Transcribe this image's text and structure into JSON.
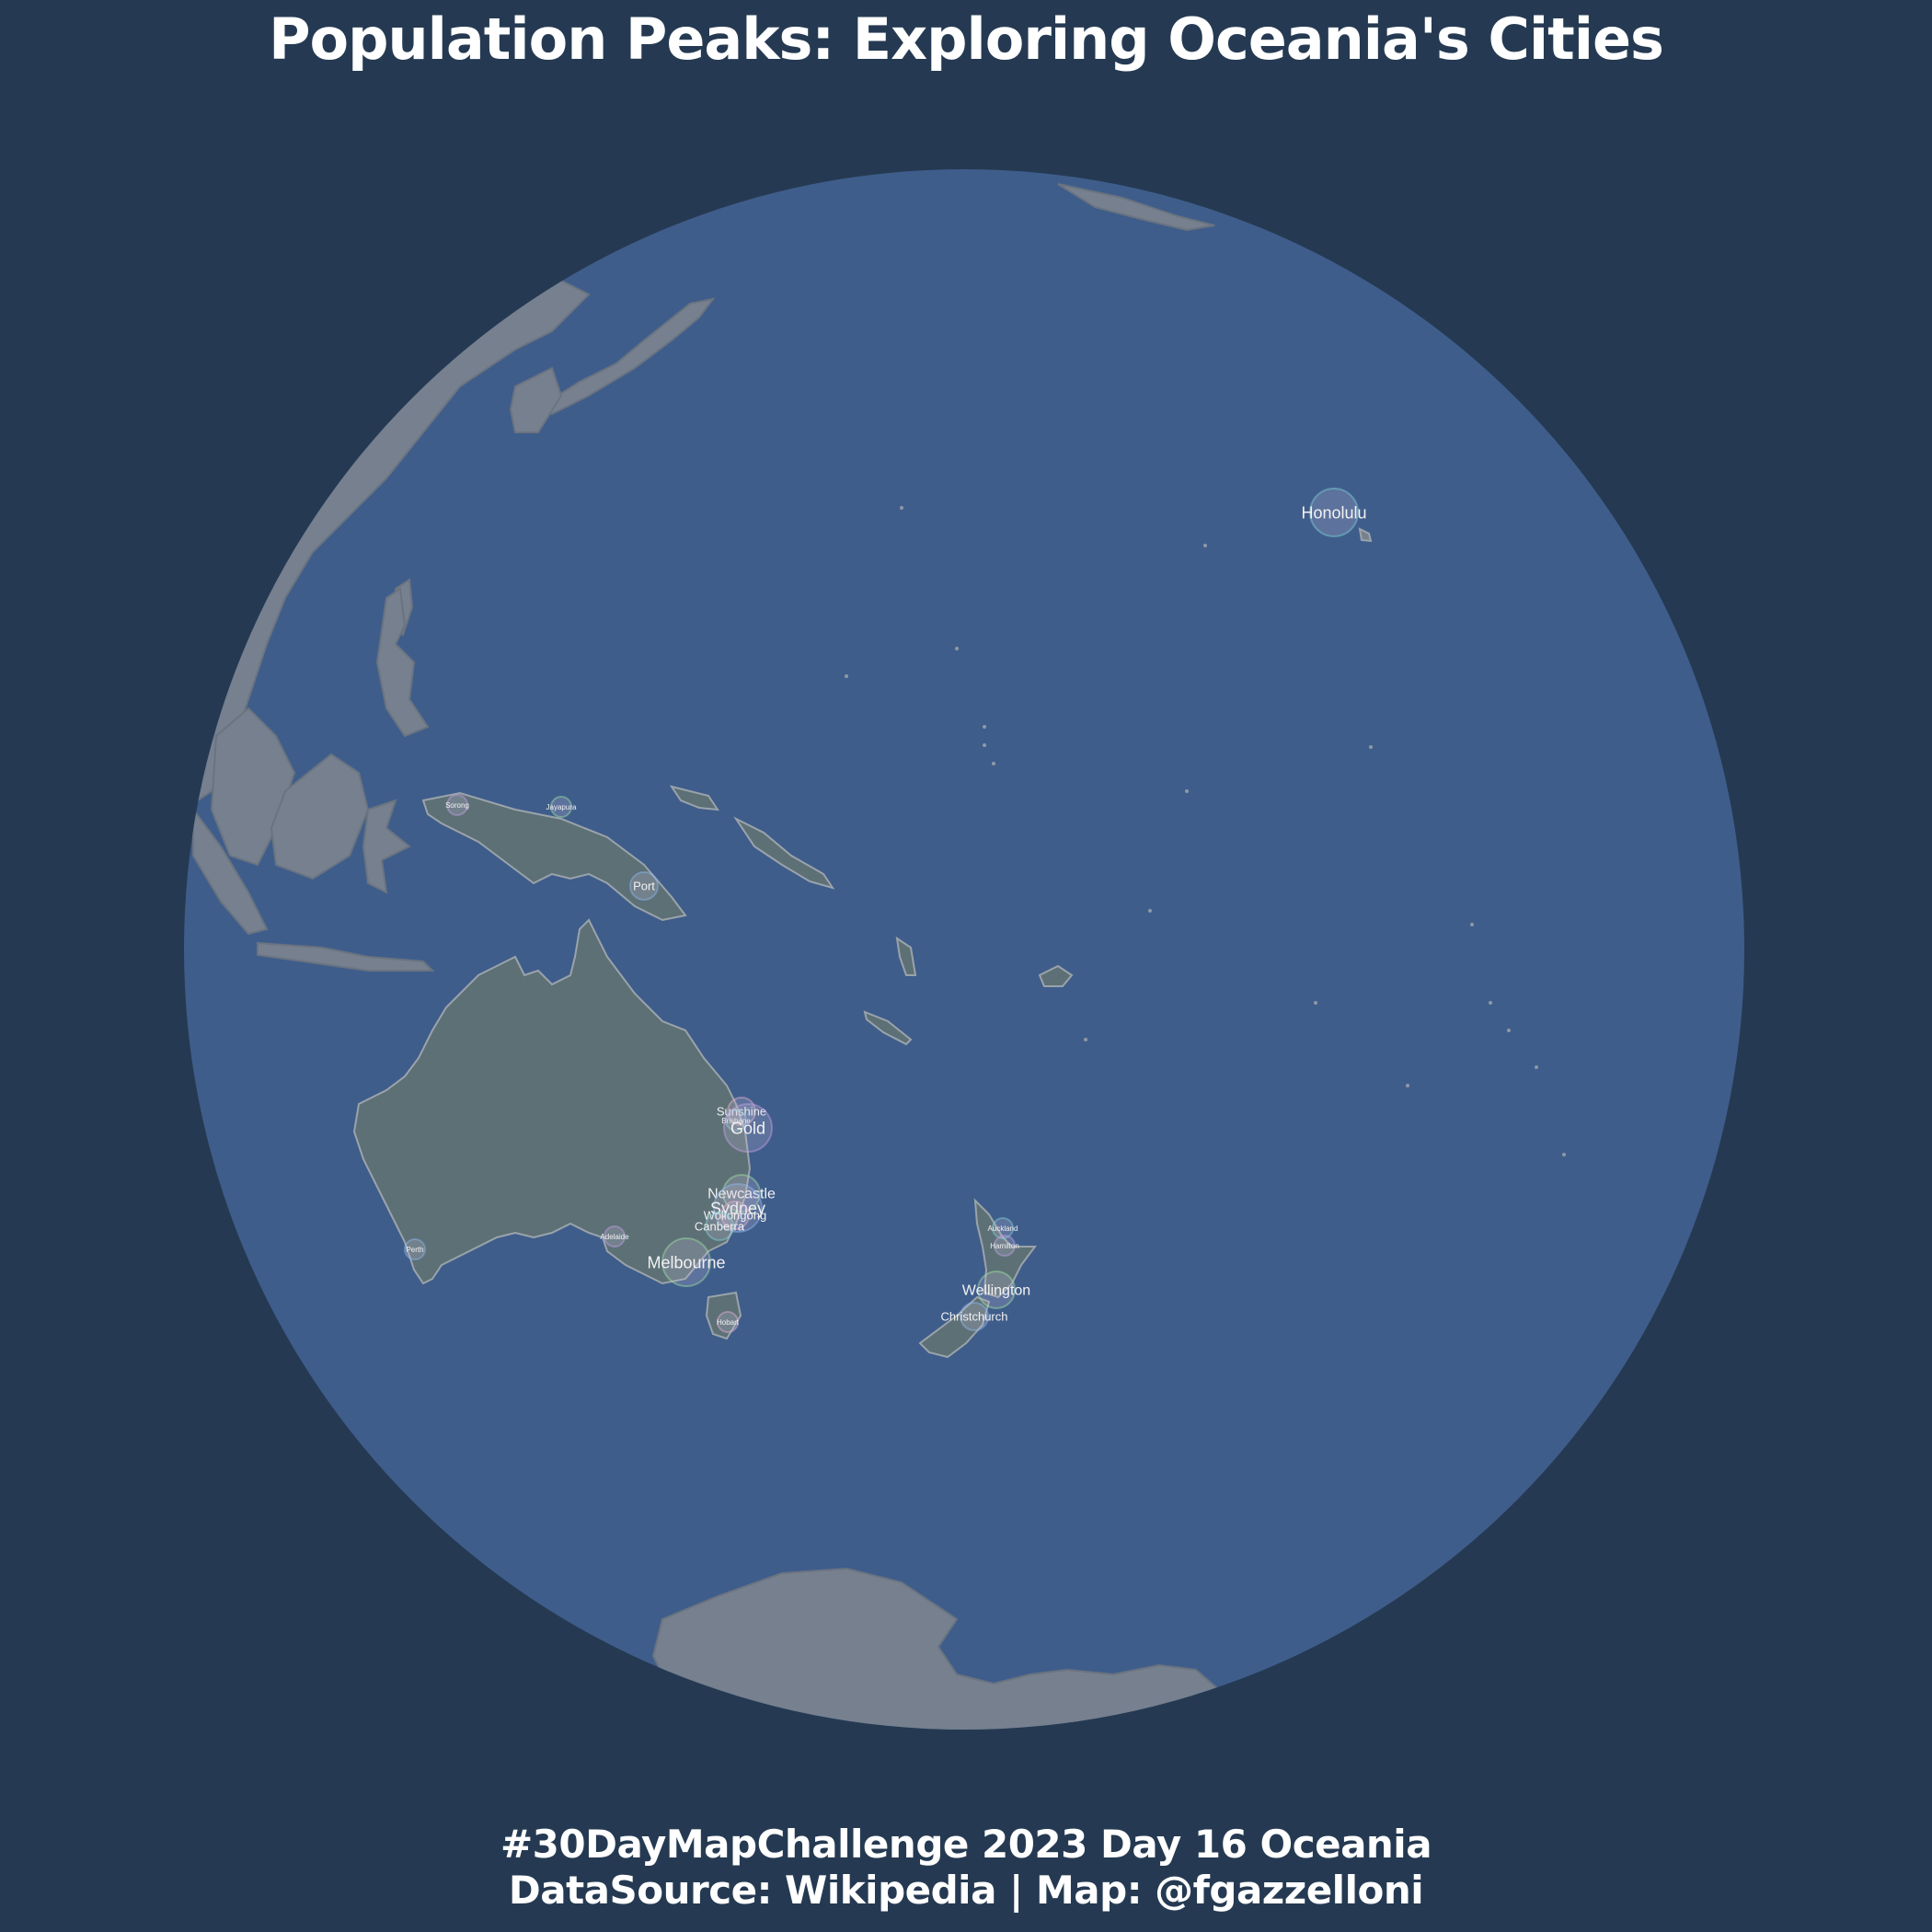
{
  "title": "Population Peaks: Exploring Oceania's Cities",
  "caption": {
    "line1": "#30DayMapChallenge 2023 Day 16 Oceania",
    "line2": "DataSource: Wikipedia | Map: @fgazzelloni"
  },
  "colors": {
    "background": "#253a52",
    "ocean": "#3f5d8b",
    "land": "#76808f",
    "oceania_land": "#5c7076",
    "coastline": "#9aa3aa",
    "text": "#ffffff"
  },
  "cities": [
    {
      "name": "Honolulu",
      "size": "large"
    },
    {
      "name": "Sorong",
      "size": "tiny"
    },
    {
      "name": "Jayapura",
      "size": "tiny"
    },
    {
      "name": "Port",
      "size": "small"
    },
    {
      "name": "Sunshine",
      "size": "small"
    },
    {
      "name": "Brisbane",
      "size": "tiny"
    },
    {
      "name": "Gold",
      "size": "large"
    },
    {
      "name": "Newcastle",
      "size": "medium"
    },
    {
      "name": "Sydney",
      "size": "large"
    },
    {
      "name": "Wollongong",
      "size": "small"
    },
    {
      "name": "Canberra",
      "size": "small"
    },
    {
      "name": "Adelaide",
      "size": "tiny"
    },
    {
      "name": "Melbourne",
      "size": "large"
    },
    {
      "name": "Perth",
      "size": "tiny"
    },
    {
      "name": "Hobart",
      "size": "tiny"
    },
    {
      "name": "Auckland",
      "size": "tiny"
    },
    {
      "name": "Hamilton",
      "size": "tiny"
    },
    {
      "name": "Wellington",
      "size": "medium"
    },
    {
      "name": "Christchurch",
      "size": "small"
    }
  ]
}
